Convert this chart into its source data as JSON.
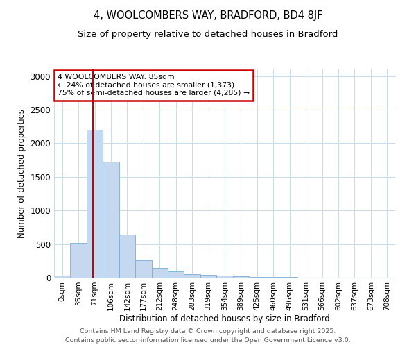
{
  "title_line1": "4, WOOLCOMBERS WAY, BRADFORD, BD4 8JF",
  "title_line2": "Size of property relative to detached houses in Bradford",
  "xlabel": "Distribution of detached houses by size in Bradford",
  "ylabel": "Number of detached properties",
  "bar_labels": [
    "0sqm",
    "35sqm",
    "71sqm",
    "106sqm",
    "142sqm",
    "177sqm",
    "212sqm",
    "248sqm",
    "283sqm",
    "319sqm",
    "354sqm",
    "389sqm",
    "425sqm",
    "460sqm",
    "496sqm",
    "531sqm",
    "566sqm",
    "602sqm",
    "637sqm",
    "673sqm",
    "708sqm"
  ],
  "bar_values": [
    30,
    520,
    2200,
    1730,
    640,
    260,
    145,
    90,
    50,
    40,
    30,
    20,
    15,
    12,
    10,
    5,
    3,
    2,
    1,
    1,
    0
  ],
  "bar_color": "#c5d8ef",
  "bar_edge_color": "#7aafd4",
  "red_line_x": 2.4,
  "annotation_text": "4 WOOLCOMBERS WAY: 85sqm\n← 24% of detached houses are smaller (1,373)\n75% of semi-detached houses are larger (4,285) →",
  "annotation_box_color": "#ffffff",
  "annotation_box_edge_color": "#cc0000",
  "red_line_color": "#cc0000",
  "ylim": [
    0,
    3100
  ],
  "yticks": [
    0,
    500,
    1000,
    1500,
    2000,
    2500,
    3000
  ],
  "footer_line1": "Contains HM Land Registry data © Crown copyright and database right 2025.",
  "footer_line2": "Contains public sector information licensed under the Open Government Licence v3.0.",
  "background_color": "#ffffff",
  "grid_color": "#ccdde8"
}
